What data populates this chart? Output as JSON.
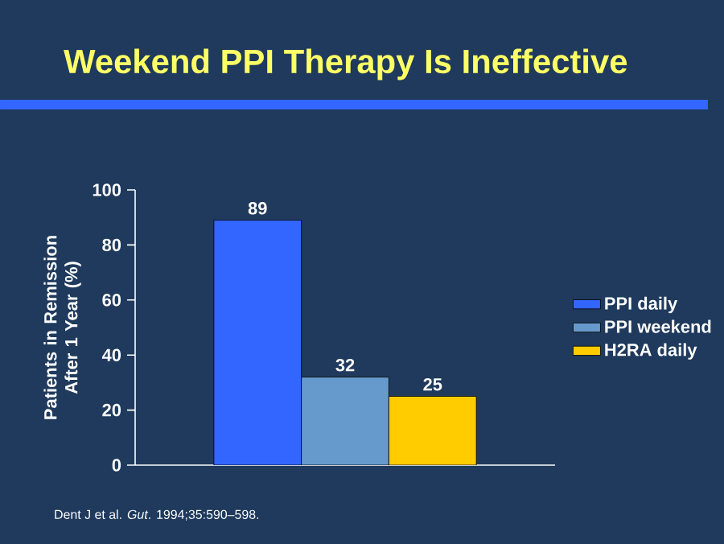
{
  "chart_data": {
    "type": "bar",
    "title": "Weekend PPI Therapy Is Ineffective",
    "ylabel": "Patients in Remission After 1 Year (%)",
    "categories": [
      null
    ],
    "series": [
      {
        "name": "PPI daily",
        "color": "#3366ff",
        "values": [
          89
        ]
      },
      {
        "name": "PPI weekend",
        "color": "#6699cc",
        "values": [
          32
        ]
      },
      {
        "name": "H2RA daily",
        "color": "#ffcc00",
        "values": [
          25
        ]
      }
    ],
    "ylim": [
      0,
      100
    ],
    "yticks": [
      0,
      20,
      40,
      60,
      80,
      100
    ],
    "data_labels": true,
    "legend": "right",
    "grid": false,
    "annotations": [
      "Dent J et al. *Gut*. 1994;35:590–598."
    ]
  }
}
